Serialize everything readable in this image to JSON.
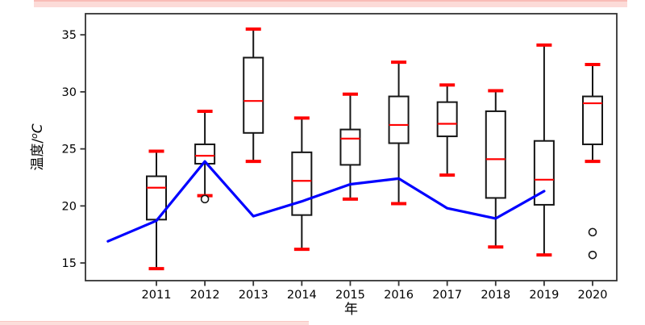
{
  "decorations": {
    "top_bar_color": "#fcdbd8",
    "top_bar_edge_color": "#f9bcb7",
    "bottom_bar_color": "#fcdedb"
  },
  "chart_data": {
    "type": "box",
    "title": "",
    "xlabel": "年",
    "ylabel": "温度/°C",
    "ylabel_parts": {
      "prefix": "温度/",
      "sup": "o",
      "unit": "C"
    },
    "x_ticks": [
      "2011",
      "2012",
      "2013",
      "2014",
      "2015",
      "2016",
      "2017",
      "2018",
      "2019",
      "2020"
    ],
    "y_ticks": [
      15,
      20,
      25,
      30,
      35
    ],
    "ylim": [
      13.45,
      36.85
    ],
    "grid": false,
    "legend": "none",
    "boxes": [
      {
        "year": 2011,
        "low": 14.5,
        "q1": 18.8,
        "median": 21.6,
        "q3": 22.6,
        "high": 24.8,
        "outliers": []
      },
      {
        "year": 2012,
        "low": 20.9,
        "q1": 23.7,
        "median": 24.4,
        "q3": 25.4,
        "high": 28.3,
        "outliers": [
          20.6
        ]
      },
      {
        "year": 2013,
        "low": 23.9,
        "q1": 26.4,
        "median": 29.2,
        "q3": 33.0,
        "high": 35.5,
        "outliers": []
      },
      {
        "year": 2014,
        "low": 16.2,
        "q1": 19.2,
        "median": 22.2,
        "q3": 24.7,
        "high": 27.7,
        "outliers": []
      },
      {
        "year": 2015,
        "low": 20.6,
        "q1": 23.6,
        "median": 25.9,
        "q3": 26.7,
        "high": 29.8,
        "outliers": []
      },
      {
        "year": 2016,
        "low": 20.2,
        "q1": 25.5,
        "median": 27.1,
        "q3": 29.6,
        "high": 32.6,
        "outliers": []
      },
      {
        "year": 2017,
        "low": 22.7,
        "q1": 26.1,
        "median": 27.2,
        "q3": 29.1,
        "high": 30.6,
        "outliers": []
      },
      {
        "year": 2018,
        "low": 16.4,
        "q1": 20.7,
        "median": 24.1,
        "q3": 28.3,
        "high": 30.1,
        "outliers": []
      },
      {
        "year": 2019,
        "low": 15.7,
        "q1": 20.1,
        "median": 22.3,
        "q3": 25.7,
        "high": 34.1,
        "outliers": []
      },
      {
        "year": 2020,
        "low": 23.9,
        "q1": 25.4,
        "median": 29.0,
        "q3": 29.6,
        "high": 32.4,
        "outliers": [
          17.7,
          15.7
        ]
      }
    ],
    "line_series": {
      "name": "mean-line",
      "x": [
        2010,
        2011,
        2012,
        2013,
        2014,
        2015,
        2016,
        2017,
        2018,
        2019
      ],
      "values": [
        16.9,
        18.7,
        23.9,
        19.1,
        20.4,
        21.9,
        22.4,
        19.8,
        18.9,
        21.3
      ]
    },
    "colors": {
      "box_stroke": "#161616",
      "whisker": "#161616",
      "median": "#ff0000",
      "whisker_cap": "#ff0000",
      "line": "#0000ff",
      "axis": "#333333",
      "text": "#000000"
    }
  }
}
